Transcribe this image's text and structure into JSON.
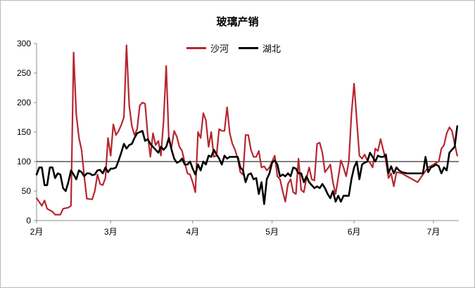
{
  "chart_data": {
    "type": "line",
    "title": "玻璃产销",
    "xlabel": "",
    "ylabel": "",
    "ylim": [
      0,
      300
    ],
    "yticks": [
      0,
      50,
      100,
      150,
      200,
      250,
      300
    ],
    "xticks": [
      {
        "label": "2月",
        "day": 0
      },
      {
        "label": "3月",
        "day": 28
      },
      {
        "label": "4月",
        "day": 59
      },
      {
        "label": "5月",
        "day": 89
      },
      {
        "label": "6月",
        "day": 120
      },
      {
        "label": "7月",
        "day": 150
      }
    ],
    "reference_line": 100,
    "grid": false,
    "legend_position": "top-center",
    "series": [
      {
        "name": "沙河",
        "color": "#b7262f",
        "points": [
          [
            0,
            38
          ],
          [
            2,
            25
          ],
          [
            3,
            34
          ],
          [
            4,
            20
          ],
          [
            6,
            15
          ],
          [
            7,
            10
          ],
          [
            9,
            10
          ],
          [
            10,
            20
          ],
          [
            12,
            22
          ],
          [
            13,
            25
          ],
          [
            14,
            285
          ],
          [
            15,
            180
          ],
          [
            16,
            140
          ],
          [
            17,
            120
          ],
          [
            18,
            75
          ],
          [
            19,
            37
          ],
          [
            21,
            36
          ],
          [
            22,
            50
          ],
          [
            23,
            78
          ],
          [
            24,
            62
          ],
          [
            25,
            60
          ],
          [
            26,
            72
          ],
          [
            27,
            140
          ],
          [
            28,
            110
          ],
          [
            29,
            163
          ],
          [
            30,
            145
          ],
          [
            31,
            152
          ],
          [
            32,
            162
          ],
          [
            33,
            175
          ],
          [
            34,
            297
          ],
          [
            35,
            195
          ],
          [
            36,
            160
          ],
          [
            37,
            145
          ],
          [
            38,
            155
          ],
          [
            39,
            195
          ],
          [
            40,
            200
          ],
          [
            41,
            198
          ],
          [
            42,
            145
          ],
          [
            43,
            108
          ],
          [
            44,
            148
          ],
          [
            45,
            128
          ],
          [
            46,
            135
          ],
          [
            47,
            110
          ],
          [
            48,
            170
          ],
          [
            49,
            262
          ],
          [
            50,
            135
          ],
          [
            51,
            125
          ],
          [
            52,
            152
          ],
          [
            53,
            142
          ],
          [
            54,
            125
          ],
          [
            55,
            118
          ],
          [
            56,
            98
          ],
          [
            57,
            80
          ],
          [
            58,
            78
          ],
          [
            59,
            65
          ],
          [
            60,
            48
          ],
          [
            61,
            150
          ],
          [
            62,
            140
          ],
          [
            63,
            182
          ],
          [
            64,
            170
          ],
          [
            65,
            125
          ],
          [
            66,
            150
          ],
          [
            67,
            108
          ],
          [
            68,
            110
          ],
          [
            69,
            155
          ],
          [
            70,
            152
          ],
          [
            71,
            152
          ],
          [
            72,
            192
          ],
          [
            73,
            148
          ],
          [
            74,
            130
          ],
          [
            75,
            120
          ],
          [
            76,
            105
          ],
          [
            77,
            82
          ],
          [
            78,
            78
          ],
          [
            79,
            145
          ],
          [
            80,
            145
          ],
          [
            81,
            120
          ],
          [
            82,
            108
          ],
          [
            83,
            108
          ],
          [
            84,
            118
          ],
          [
            85,
            90
          ],
          [
            86,
            92
          ],
          [
            87,
            85
          ],
          [
            88,
            90
          ],
          [
            89,
            100
          ],
          [
            90,
            110
          ],
          [
            91,
            75
          ],
          [
            92,
            70
          ],
          [
            93,
            50
          ],
          [
            94,
            32
          ],
          [
            95,
            62
          ],
          [
            96,
            70
          ],
          [
            97,
            48
          ],
          [
            98,
            45
          ],
          [
            99,
            105
          ],
          [
            100,
            52
          ],
          [
            101,
            48
          ],
          [
            102,
            72
          ],
          [
            103,
            90
          ],
          [
            104,
            70
          ],
          [
            105,
            68
          ],
          [
            106,
            130
          ],
          [
            107,
            132
          ],
          [
            108,
            115
          ],
          [
            109,
            82
          ],
          [
            110,
            88
          ],
          [
            111,
            95
          ],
          [
            112,
            65
          ],
          [
            113,
            45
          ],
          [
            114,
            72
          ],
          [
            115,
            102
          ],
          [
            116,
            90
          ],
          [
            117,
            75
          ],
          [
            118,
            100
          ],
          [
            119,
            180
          ],
          [
            120,
            232
          ],
          [
            121,
            170
          ],
          [
            122,
            110
          ],
          [
            123,
            105
          ],
          [
            124,
            112
          ],
          [
            125,
            102
          ],
          [
            126,
            98
          ],
          [
            127,
            90
          ],
          [
            128,
            122
          ],
          [
            129,
            118
          ],
          [
            130,
            138
          ],
          [
            131,
            120
          ],
          [
            132,
            102
          ],
          [
            133,
            72
          ],
          [
            134,
            80
          ],
          [
            135,
            58
          ],
          [
            136,
            82
          ],
          [
            138,
            80
          ],
          [
            140,
            75
          ],
          [
            142,
            70
          ],
          [
            144,
            65
          ],
          [
            146,
            78
          ],
          [
            148,
            90
          ],
          [
            150,
            95
          ],
          [
            151,
            98
          ],
          [
            152,
            100
          ],
          [
            153,
            122
          ],
          [
            154,
            128
          ],
          [
            155,
            148
          ],
          [
            156,
            158
          ],
          [
            157,
            152
          ],
          [
            158,
            130
          ],
          [
            159,
            110
          ]
        ]
      },
      {
        "name": "湖北",
        "color": "#000000",
        "points": [
          [
            0,
            78
          ],
          [
            1,
            90
          ],
          [
            2,
            90
          ],
          [
            3,
            60
          ],
          [
            4,
            60
          ],
          [
            5,
            90
          ],
          [
            6,
            90
          ],
          [
            7,
            72
          ],
          [
            8,
            80
          ],
          [
            9,
            78
          ],
          [
            10,
            55
          ],
          [
            11,
            50
          ],
          [
            12,
            65
          ],
          [
            13,
            85
          ],
          [
            14,
            78
          ],
          [
            15,
            70
          ],
          [
            16,
            85
          ],
          [
            17,
            82
          ],
          [
            18,
            75
          ],
          [
            19,
            80
          ],
          [
            20,
            80
          ],
          [
            21,
            77
          ],
          [
            22,
            78
          ],
          [
            23,
            85
          ],
          [
            24,
            86
          ],
          [
            25,
            80
          ],
          [
            26,
            90
          ],
          [
            27,
            82
          ],
          [
            28,
            88
          ],
          [
            29,
            88
          ],
          [
            30,
            90
          ],
          [
            31,
            102
          ],
          [
            32,
            115
          ],
          [
            33,
            130
          ],
          [
            34,
            122
          ],
          [
            35,
            128
          ],
          [
            36,
            130
          ],
          [
            37,
            140
          ],
          [
            38,
            148
          ],
          [
            39,
            150
          ],
          [
            40,
            152
          ],
          [
            41,
            135
          ],
          [
            42,
            138
          ],
          [
            43,
            130
          ],
          [
            44,
            125
          ],
          [
            45,
            120
          ],
          [
            46,
            115
          ],
          [
            47,
            125
          ],
          [
            48,
            120
          ],
          [
            49,
            125
          ],
          [
            50,
            140
          ],
          [
            51,
            120
          ],
          [
            52,
            105
          ],
          [
            53,
            98
          ],
          [
            54,
            100
          ],
          [
            55,
            105
          ],
          [
            56,
            95
          ],
          [
            57,
            95
          ],
          [
            58,
            100
          ],
          [
            59,
            88
          ],
          [
            60,
            78
          ],
          [
            61,
            95
          ],
          [
            62,
            85
          ],
          [
            63,
            100
          ],
          [
            64,
            95
          ],
          [
            65,
            110
          ],
          [
            66,
            108
          ],
          [
            67,
            120
          ],
          [
            68,
            112
          ],
          [
            69,
            105
          ],
          [
            70,
            95
          ],
          [
            71,
            110
          ],
          [
            72,
            105
          ],
          [
            73,
            108
          ],
          [
            74,
            108
          ],
          [
            75,
            108
          ],
          [
            76,
            108
          ],
          [
            77,
            90
          ],
          [
            78,
            85
          ],
          [
            79,
            65
          ],
          [
            80,
            78
          ],
          [
            81,
            80
          ],
          [
            82,
            70
          ],
          [
            83,
            72
          ],
          [
            84,
            45
          ],
          [
            85,
            65
          ],
          [
            86,
            28
          ],
          [
            87,
            70
          ],
          [
            88,
            80
          ],
          [
            89,
            98
          ],
          [
            90,
            102
          ],
          [
            91,
            95
          ],
          [
            92,
            75
          ],
          [
            93,
            78
          ],
          [
            94,
            75
          ],
          [
            95,
            80
          ],
          [
            96,
            75
          ],
          [
            97,
            90
          ],
          [
            98,
            88
          ],
          [
            99,
            80
          ],
          [
            100,
            80
          ],
          [
            101,
            65
          ],
          [
            102,
            75
          ],
          [
            103,
            65
          ],
          [
            104,
            60
          ],
          [
            105,
            55
          ],
          [
            106,
            58
          ],
          [
            107,
            55
          ],
          [
            108,
            62
          ],
          [
            109,
            55
          ],
          [
            110,
            45
          ],
          [
            111,
            38
          ],
          [
            112,
            50
          ],
          [
            113,
            32
          ],
          [
            114,
            42
          ],
          [
            115,
            32
          ],
          [
            116,
            42
          ],
          [
            117,
            42
          ],
          [
            118,
            42
          ],
          [
            119,
            70
          ],
          [
            120,
            90
          ],
          [
            121,
            100
          ],
          [
            122,
            70
          ],
          [
            123,
            95
          ],
          [
            124,
            98
          ],
          [
            125,
            100
          ],
          [
            126,
            115
          ],
          [
            127,
            108
          ],
          [
            128,
            100
          ],
          [
            129,
            110
          ],
          [
            130,
            108
          ],
          [
            131,
            108
          ],
          [
            132,
            112
          ],
          [
            133,
            80
          ],
          [
            134,
            92
          ],
          [
            135,
            80
          ],
          [
            136,
            90
          ],
          [
            137,
            85
          ],
          [
            138,
            82
          ],
          [
            140,
            80
          ],
          [
            142,
            80
          ],
          [
            144,
            80
          ],
          [
            146,
            80
          ],
          [
            147,
            108
          ],
          [
            148,
            82
          ],
          [
            149,
            90
          ],
          [
            150,
            92
          ],
          [
            151,
            95
          ],
          [
            152,
            92
          ],
          [
            153,
            80
          ],
          [
            154,
            90
          ],
          [
            155,
            85
          ],
          [
            156,
            115
          ],
          [
            157,
            120
          ],
          [
            158,
            125
          ],
          [
            159,
            160
          ]
        ]
      }
    ]
  }
}
